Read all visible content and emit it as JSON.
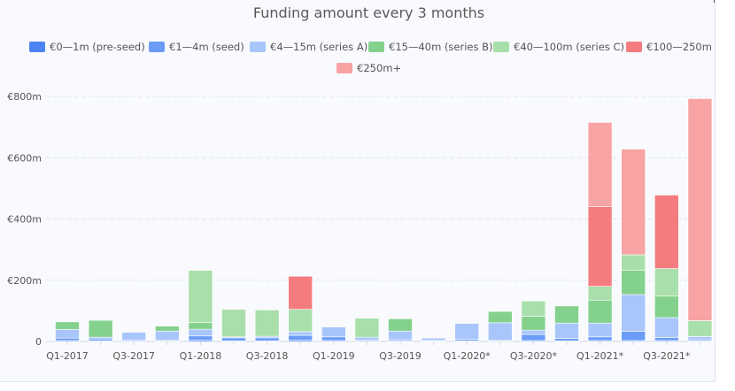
{
  "chart_data": {
    "type": "bar",
    "stacked": true,
    "title": "Funding amount every 3 months",
    "xlabel": "",
    "ylabel": "",
    "ylim": [
      0,
      800
    ],
    "y_ticks": [
      0,
      200,
      400,
      600,
      800
    ],
    "y_tick_labels": [
      "0",
      "€200m",
      "€400m",
      "€600m",
      "€800m"
    ],
    "grid": "horizontal dashed",
    "legend_position": "top",
    "categories": [
      "Q1-2017",
      "Q2-2017",
      "Q3-2017",
      "Q4-2017",
      "Q1-2018",
      "Q2-2018",
      "Q3-2018",
      "Q4-2018",
      "Q1-2019",
      "Q2-2019",
      "Q3-2019",
      "Q4-2019",
      "Q1-2020*",
      "Q2-2020*",
      "Q3-2020*",
      "Q4-2020*",
      "Q1-2021*",
      "Q2-2021*",
      "Q3-2021*",
      "Q4-2021*"
    ],
    "x_tick_labels": [
      "Q1-2017",
      "",
      "Q3-2017",
      "",
      "Q1-2018",
      "",
      "Q3-2018",
      "",
      "Q1-2019",
      "",
      "Q3-2019",
      "",
      "Q1-2020*",
      "",
      "Q3-2020*",
      "",
      "Q1-2021*",
      "",
      "Q3-2021*",
      ""
    ],
    "series": [
      {
        "name": "€0—1m (pre-seed)",
        "color": "#4b84f2",
        "values": [
          3,
          2,
          1,
          2,
          4,
          2,
          2,
          4,
          3,
          1,
          2,
          1,
          2,
          2,
          3,
          2,
          3,
          3,
          3,
          2
        ]
      },
      {
        "name": "€1—4m (seed)",
        "color": "#6c9cf6",
        "values": [
          8,
          6,
          3,
          3,
          14,
          10,
          10,
          16,
          12,
          3,
          4,
          2,
          5,
          3,
          20,
          8,
          12,
          30,
          10,
          4
        ]
      },
      {
        "name": "€4—15m (series A)",
        "color": "#a9c6fb",
        "values": [
          28,
          6,
          26,
          29,
          22,
          3,
          5,
          12,
          32,
          10,
          28,
          8,
          52,
          56,
          14,
          50,
          45,
          120,
          65,
          10
        ]
      },
      {
        "name": "€15—40m (series B)",
        "color": "#84d18d",
        "values": [
          25,
          55,
          0,
          16,
          22,
          0,
          0,
          0,
          0,
          0,
          40,
          0,
          0,
          37,
          45,
          56,
          75,
          80,
          70,
          0
        ]
      },
      {
        "name": "€40—100m (series C)",
        "color": "#a9dfaa",
        "values": [
          0,
          0,
          0,
          0,
          170,
          90,
          86,
          73,
          0,
          62,
          0,
          0,
          0,
          0,
          50,
          0,
          45,
          50,
          90,
          52
        ]
      },
      {
        "name": "€100—250m",
        "color": "#f47c7f",
        "values": [
          0,
          0,
          0,
          0,
          0,
          0,
          0,
          108,
          0,
          0,
          0,
          0,
          0,
          0,
          0,
          0,
          260,
          0,
          240,
          0
        ]
      },
      {
        "name": "€250m+",
        "color": "#f8a3a4",
        "values": [
          0,
          0,
          0,
          0,
          0,
          0,
          0,
          0,
          0,
          0,
          0,
          0,
          0,
          0,
          0,
          0,
          275,
          345,
          0,
          725
        ]
      }
    ]
  }
}
